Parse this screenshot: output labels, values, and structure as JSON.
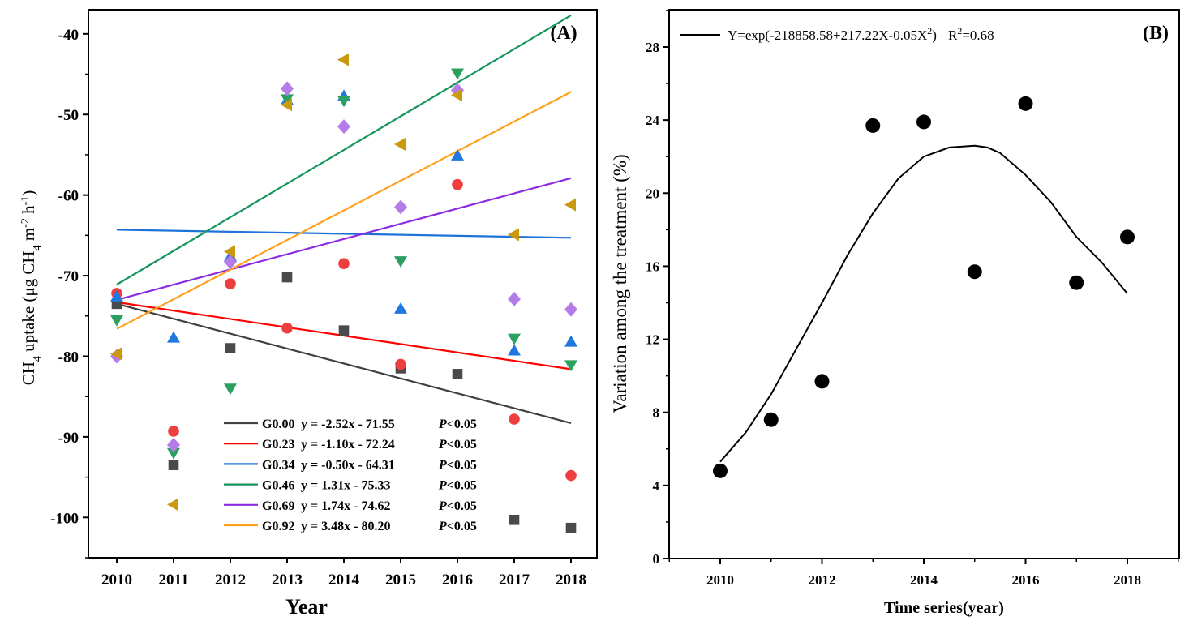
{
  "chart_data": [
    {
      "panel_label": "(A)",
      "type": "scatter",
      "xlabel": "Year",
      "ylabel": "CH4 uptake (μg CH4 m-2 h-1)",
      "ylabel_parts": [
        "CH",
        "4",
        "  uptake (μg CH",
        "4",
        " m",
        "-2",
        " h",
        "-1",
        ")"
      ],
      "x": [
        2010,
        2011,
        2012,
        2013,
        2014,
        2015,
        2016,
        2017,
        2018
      ],
      "x_ticks": [
        "2010",
        "2011",
        "2012",
        "2013",
        "2014",
        "2015",
        "2016",
        "2017",
        "2018"
      ],
      "xlim": [
        2009.65,
        2018.35
      ],
      "y_ticks": [
        "-40",
        "-50",
        "-60",
        "-70",
        "-80",
        "-90",
        "-100"
      ],
      "y_tick_values": [
        -40,
        -50,
        -60,
        -70,
        -80,
        -90,
        -100
      ],
      "ylim": [
        -105,
        -37
      ],
      "grid": false,
      "legend_position": "bottom-right",
      "series": [
        {
          "name": "G0.00",
          "label": "G0.00",
          "equation": "y = -2.52x - 71.55",
          "p": "P",
          "p_rest": "<0.05",
          "color": "#4a4a4a",
          "line_color": "#404040",
          "marker": "square",
          "values": [
            -73.5,
            -93.5,
            -79,
            -70.2,
            -76.8,
            -81.5,
            -82.2,
            -100.3,
            -101.3
          ],
          "fit": [
            -73.5,
            -88.3
          ]
        },
        {
          "name": "G0.23",
          "label": "G0.23",
          "equation": "y = -1.10x - 72.24",
          "p": "P",
          "p_rest": "<0.05",
          "color": "#ef3e3e",
          "line_color": "#ff0000",
          "marker": "circle",
          "values": [
            -72.2,
            -89.3,
            -71,
            -76.5,
            -68.5,
            -81,
            -58.7,
            -87.8,
            -94.8
          ],
          "fit": [
            -73.3,
            -81.6
          ]
        },
        {
          "name": "G0.34",
          "label": "G0.34",
          "equation": "y = -0.50x - 64.31",
          "p": "P",
          "p_rest": "<0.05",
          "color": "#1f77e0",
          "line_color": "#1e73d8",
          "marker": "triangle-up",
          "values": [
            -72.6,
            -77.7,
            -67.6,
            -48.2,
            -47.7,
            -74.1,
            -55.1,
            -79.3,
            -78.2
          ],
          "fit": [
            -64.3,
            -65.3
          ]
        },
        {
          "name": "G0.46",
          "label": "G0.46",
          "equation": "y = 1.31x - 75.33",
          "p": "P",
          "p_rest": "<0.05",
          "color": "#2ba060",
          "line_color": "#14955a",
          "marker": "triangle-down",
          "values": [
            -75.5,
            -92,
            -84,
            -48.1,
            -48.3,
            -68.2,
            -44.9,
            -77.8,
            -81.1
          ],
          "fit": [
            -71.1,
            -37.7
          ]
        },
        {
          "name": "G0.69",
          "label": "G0.69",
          "equation": "y = 1.74x - 74.62",
          "p": "P",
          "p_rest": "<0.05",
          "color": "#b57ce8",
          "line_color": "#8b2be2",
          "marker": "diamond",
          "values": [
            -80,
            -91,
            -68.3,
            -46.8,
            -51.5,
            -61.5,
            -47,
            -72.9,
            -74.2
          ],
          "fit": [
            -73,
            -57.9
          ]
        },
        {
          "name": "G0.92",
          "label": "G0.92",
          "equation": "y = 3.48x - 80.20",
          "p": "P",
          "p_rest": "<0.05",
          "color": "#c99a10",
          "line_color": "#ff9f1c",
          "marker": "triangle-left",
          "values": [
            -79.7,
            -98.4,
            -67,
            -48.8,
            -43.2,
            -53.7,
            -47.6,
            -64.9,
            -61.2
          ],
          "fit": [
            -76.6,
            -47.2
          ]
        }
      ]
    },
    {
      "panel_label": "(B)",
      "type": "scatter",
      "xlabel": "Time series(year)",
      "ylabel": "Variation among the treatment (%)",
      "xlim": [
        2009,
        2020
      ],
      "x_ticks": [
        "2010",
        "2012",
        "2014",
        "2016",
        "2018"
      ],
      "x_tick_values": [
        2010,
        2012,
        2014,
        2016,
        2018
      ],
      "ylim": [
        0,
        30
      ],
      "y_ticks": [
        "0",
        "4",
        "8",
        "12",
        "16",
        "20",
        "24",
        "28"
      ],
      "y_tick_values": [
        0,
        4,
        8,
        12,
        16,
        20,
        24,
        28
      ],
      "grid": false,
      "legend_position": "top-left",
      "x": [
        2010,
        2011,
        2012,
        2013,
        2014,
        2015,
        2016,
        2017,
        2018
      ],
      "values": [
        4.8,
        7.6,
        9.7,
        23.7,
        23.9,
        15.7,
        24.9,
        15.1,
        17.6
      ],
      "fit_curve": {
        "x": [
          2010,
          2010.5,
          2011,
          2011.5,
          2012,
          2012.5,
          2013,
          2013.5,
          2014,
          2014.5,
          2015,
          2015.25,
          2015.5,
          2016,
          2016.5,
          2017,
          2017.5,
          2018
        ],
        "y": [
          5.3,
          6.9,
          9.0,
          11.5,
          14.0,
          16.6,
          18.9,
          20.8,
          22.0,
          22.5,
          22.6,
          22.5,
          22.2,
          21.0,
          19.5,
          17.6,
          16.2,
          14.5
        ]
      },
      "equation_main": "Y=exp(-218858.58+217.22X-0.05X",
      "equation_sup": "2",
      "equation_close": ")",
      "r2_main": "R",
      "r2_sup": "2",
      "r2_value": "=0.68"
    }
  ]
}
